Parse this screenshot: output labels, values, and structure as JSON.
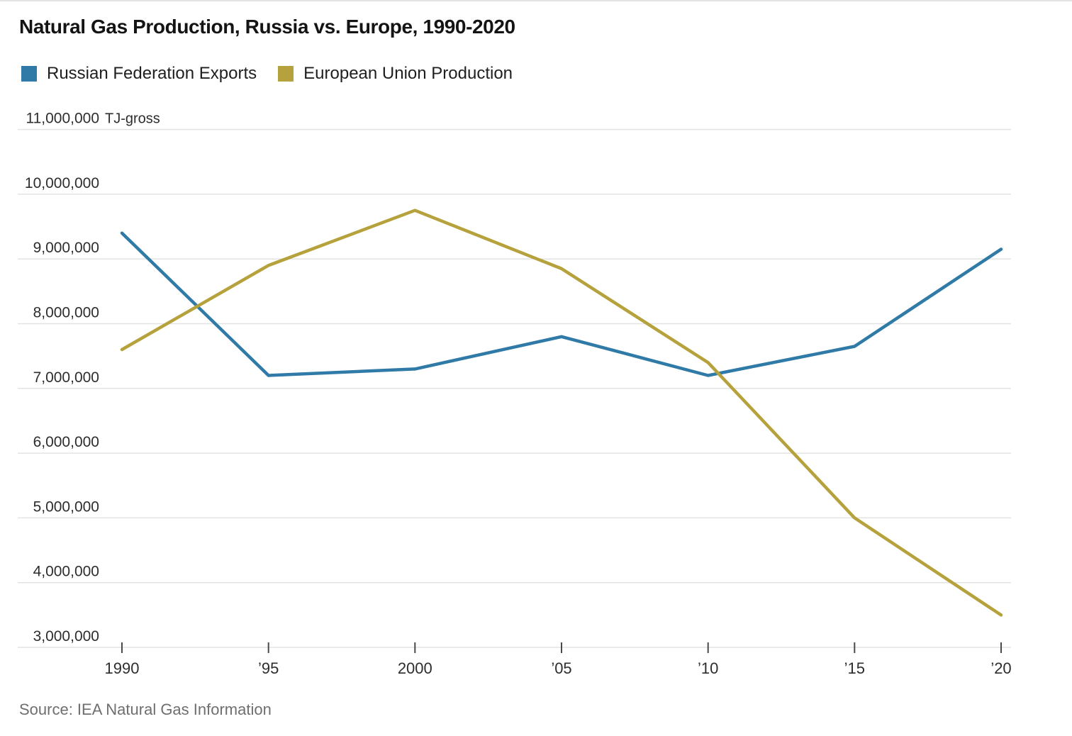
{
  "title": "Natural Gas Production, Russia vs. Europe, 1990-2020",
  "legend": [
    {
      "label": "Russian Federation Exports",
      "color": "#2f7aa6"
    },
    {
      "label": "European Union Production",
      "color": "#b6a23c"
    }
  ],
  "source": "Source: IEA Natural Gas Information",
  "chart_data": {
    "type": "line",
    "x": [
      1990,
      1995,
      2000,
      2005,
      2010,
      2015,
      2020
    ],
    "x_tick_labels": [
      "1990",
      "’95",
      "2000",
      "’05",
      "’10",
      "’15",
      "’20"
    ],
    "series": [
      {
        "name": "Russian Federation Exports",
        "color": "#2f7aa6",
        "values": [
          9400000,
          7200000,
          7300000,
          7800000,
          7200000,
          7650000,
          9150000
        ]
      },
      {
        "name": "European Union Production",
        "color": "#b6a23c",
        "values": [
          7600000,
          8900000,
          9750000,
          8850000,
          7400000,
          5000000,
          3500000
        ]
      }
    ],
    "unit": "TJ-gross",
    "ylim": [
      3000000,
      11000000
    ],
    "ytick_step": 1000000,
    "y_ticks": [
      3000000,
      4000000,
      5000000,
      6000000,
      7000000,
      8000000,
      9000000,
      10000000,
      11000000
    ],
    "y_tick_labels": [
      "3,000,000",
      "4,000,000",
      "5,000,000",
      "6,000,000",
      "7,000,000",
      "8,000,000",
      "9,000,000",
      "10,000,000",
      "11,000,000"
    ],
    "grid": true,
    "legend_position": "top"
  }
}
